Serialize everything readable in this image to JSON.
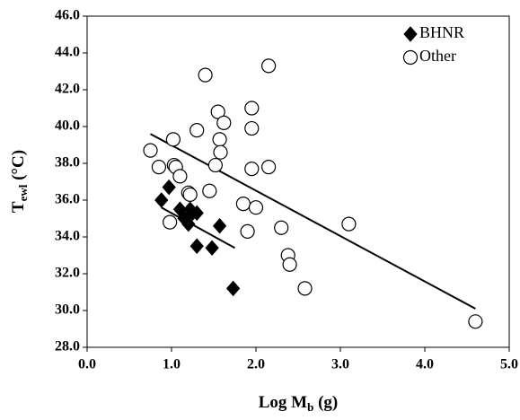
{
  "chart_data": {
    "type": "scatter",
    "xlabel": {
      "main": "Log M",
      "sub": "b",
      "unit": "(g)"
    },
    "ylabel": {
      "main": "T",
      "sub": "ewl",
      "unit": "(°C)"
    },
    "xlim": [
      0,
      5
    ],
    "ylim": [
      28,
      46
    ],
    "xticks": [
      {
        "value": 0,
        "label": "0.0"
      },
      {
        "value": 1,
        "label": "1.0"
      },
      {
        "value": 2,
        "label": "2.0"
      },
      {
        "value": 3,
        "label": "3.0"
      },
      {
        "value": 4,
        "label": "4.0"
      },
      {
        "value": 5,
        "label": "5.0"
      }
    ],
    "yticks": [
      {
        "value": 28,
        "label": "28.0"
      },
      {
        "value": 30,
        "label": "30.0"
      },
      {
        "value": 32,
        "label": "32.0"
      },
      {
        "value": 34,
        "label": "34.0"
      },
      {
        "value": 36,
        "label": "36.0"
      },
      {
        "value": 38,
        "label": "38.0"
      },
      {
        "value": 40,
        "label": "40.0"
      },
      {
        "value": 42,
        "label": "42.0"
      },
      {
        "value": 44,
        "label": "44.0"
      },
      {
        "value": 46,
        "label": "46.0"
      }
    ],
    "legend": "top-right",
    "series": [
      {
        "name": "BHNR",
        "marker": "diamond",
        "color": "#000000",
        "x": [
          0.88,
          0.97,
          1.1,
          1.15,
          1.2,
          1.22,
          1.25,
          1.3,
          1.3,
          1.48,
          1.57,
          1.73
        ],
        "values": [
          36.0,
          36.7,
          35.5,
          35.0,
          34.7,
          35.5,
          35.3,
          35.3,
          33.5,
          33.4,
          34.6,
          31.2
        ],
        "trend": {
          "x": [
            0.88,
            1.75
          ],
          "values": [
            35.6,
            33.4
          ]
        }
      },
      {
        "name": "Other",
        "marker": "circle",
        "color": "#000000",
        "x": [
          0.75,
          0.85,
          0.98,
          1.02,
          1.03,
          1.05,
          1.1,
          1.2,
          1.22,
          1.3,
          1.4,
          1.45,
          1.52,
          1.55,
          1.57,
          1.58,
          1.62,
          1.85,
          1.9,
          1.95,
          1.95,
          1.95,
          2.0,
          2.15,
          2.15,
          2.3,
          2.38,
          2.4,
          2.58,
          3.1,
          4.6
        ],
        "values": [
          38.7,
          37.8,
          34.8,
          39.3,
          37.9,
          37.8,
          37.3,
          36.4,
          36.3,
          39.8,
          42.8,
          36.5,
          37.9,
          40.8,
          39.3,
          38.6,
          40.2,
          35.8,
          34.3,
          41.0,
          39.9,
          37.7,
          35.6,
          43.3,
          37.8,
          34.5,
          33.0,
          32.5,
          31.2,
          34.7,
          29.4
        ],
        "trend": {
          "x": [
            0.75,
            4.6
          ],
          "values": [
            39.6,
            30.1
          ]
        }
      }
    ]
  }
}
